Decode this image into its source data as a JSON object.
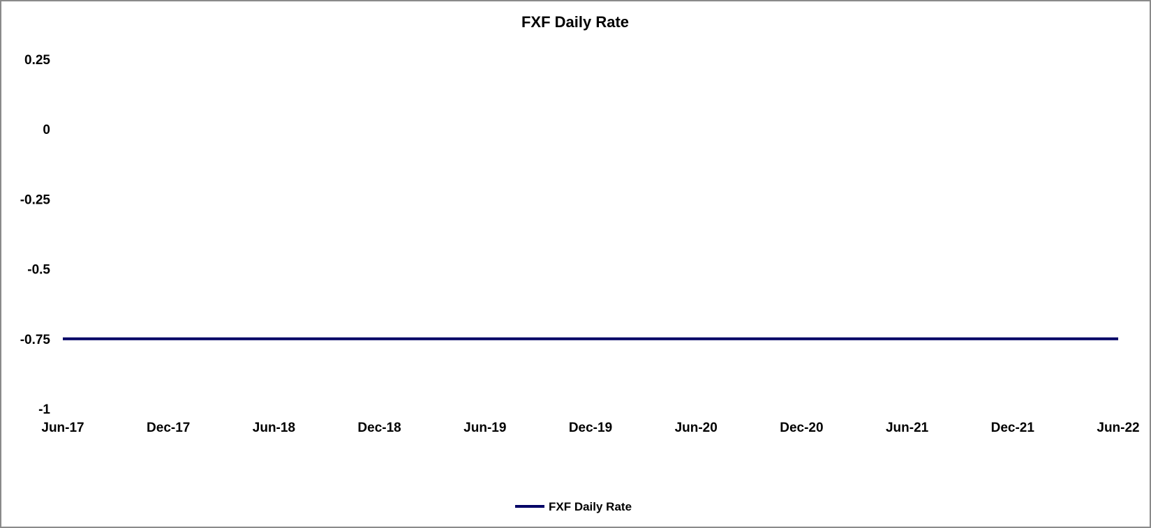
{
  "chart_data": {
    "type": "line",
    "title": "FXF Daily Rate",
    "xlabel": "",
    "ylabel": "",
    "x_ticks": [
      "Jun-17",
      "Dec-17",
      "Jun-18",
      "Dec-18",
      "Jun-19",
      "Dec-19",
      "Jun-20",
      "Dec-20",
      "Jun-21",
      "Dec-21",
      "Jun-22"
    ],
    "y_ticks": [
      0.25,
      0,
      -0.25,
      -0.5,
      -0.75,
      -1
    ],
    "ylim": [
      -1,
      0.25
    ],
    "grid": false,
    "legend_position": "bottom",
    "series": [
      {
        "name": "FXF Daily Rate",
        "color": "#000066",
        "x": [
          "2017-06",
          "2022-06"
        ],
        "values": [
          -0.75,
          -0.75
        ]
      }
    ]
  }
}
